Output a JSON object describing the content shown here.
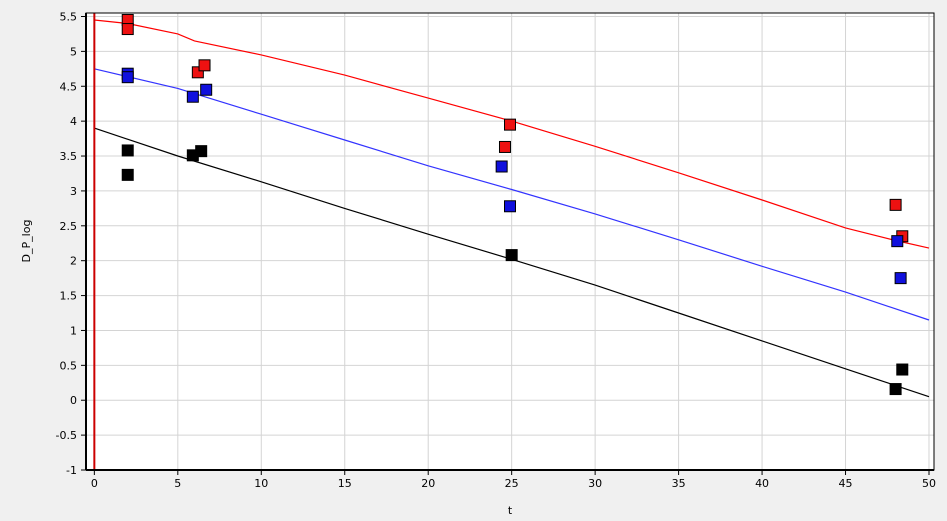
{
  "chart_data": {
    "type": "scatter",
    "title": "",
    "xlabel": "t",
    "ylabel": "D_P_log",
    "xlim": [
      -0.5,
      50.3
    ],
    "ylim": [
      -1,
      5.55
    ],
    "grid": true,
    "x_ticks": [
      "0",
      "5",
      "10",
      "15",
      "20",
      "25",
      "30",
      "35",
      "40",
      "45",
      "50"
    ],
    "x_tick_values": [
      0,
      5,
      10,
      15,
      20,
      25,
      30,
      35,
      40,
      45,
      50
    ],
    "y_ticks": [
      "5.5",
      "5",
      "4.5",
      "4",
      "3.5",
      "3",
      "2.5",
      "2",
      "1.5",
      "1",
      "0.5",
      "0",
      "-0.5",
      "-1"
    ],
    "y_tick_values": [
      5.5,
      5,
      4.5,
      4,
      3.5,
      3,
      2.5,
      2,
      1.5,
      1,
      0.5,
      0,
      -0.5,
      -1
    ],
    "series": [
      {
        "color": "#ff0000",
        "marker_fill": "#ee1111",
        "points": [
          [
            2,
            5.45
          ],
          [
            2,
            5.32
          ],
          [
            6.2,
            4.7
          ],
          [
            6.6,
            4.8
          ],
          [
            24.6,
            3.63
          ],
          [
            24.9,
            3.95
          ],
          [
            48,
            2.8
          ],
          [
            48.4,
            2.35
          ]
        ],
        "fit": [
          [
            0,
            5.45
          ],
          [
            2,
            5.4
          ],
          [
            5,
            5.25
          ],
          [
            6,
            5.15
          ],
          [
            10,
            4.95
          ],
          [
            15,
            4.66
          ],
          [
            20,
            4.33
          ],
          [
            25,
            4.0
          ],
          [
            30,
            3.64
          ],
          [
            35,
            3.26
          ],
          [
            40,
            2.87
          ],
          [
            45,
            2.47
          ],
          [
            48,
            2.29
          ],
          [
            50,
            2.18
          ]
        ]
      },
      {
        "color": "#3333ff",
        "marker_fill": "#1010dd",
        "points": [
          [
            2,
            4.68
          ],
          [
            2,
            4.63
          ],
          [
            5.9,
            4.35
          ],
          [
            6.7,
            4.45
          ],
          [
            24.4,
            3.35
          ],
          [
            24.9,
            2.78
          ],
          [
            48.1,
            2.28
          ],
          [
            48.3,
            1.75
          ]
        ],
        "fit": [
          [
            0,
            4.75
          ],
          [
            5,
            4.47
          ],
          [
            10,
            4.1
          ],
          [
            15,
            3.73
          ],
          [
            20,
            3.36
          ],
          [
            25,
            3.02
          ],
          [
            30,
            2.67
          ],
          [
            35,
            2.3
          ],
          [
            40,
            1.92
          ],
          [
            45,
            1.55
          ],
          [
            50,
            1.15
          ]
        ]
      },
      {
        "color": "#000000",
        "marker_fill": "#000000",
        "points": [
          [
            2,
            3.58
          ],
          [
            2,
            3.23
          ],
          [
            5.9,
            3.51
          ],
          [
            6.4,
            3.57
          ],
          [
            25,
            2.08
          ],
          [
            48,
            0.16
          ],
          [
            48.4,
            0.44
          ]
        ],
        "fit": [
          [
            0,
            3.9
          ],
          [
            5,
            3.5
          ],
          [
            10,
            3.13
          ],
          [
            15,
            2.75
          ],
          [
            20,
            2.38
          ],
          [
            25,
            2.02
          ],
          [
            30,
            1.65
          ],
          [
            35,
            1.25
          ],
          [
            40,
            0.85
          ],
          [
            45,
            0.45
          ],
          [
            50,
            0.05
          ]
        ]
      }
    ],
    "vertical_line": {
      "x": 0,
      "color": "#cc0000"
    }
  }
}
